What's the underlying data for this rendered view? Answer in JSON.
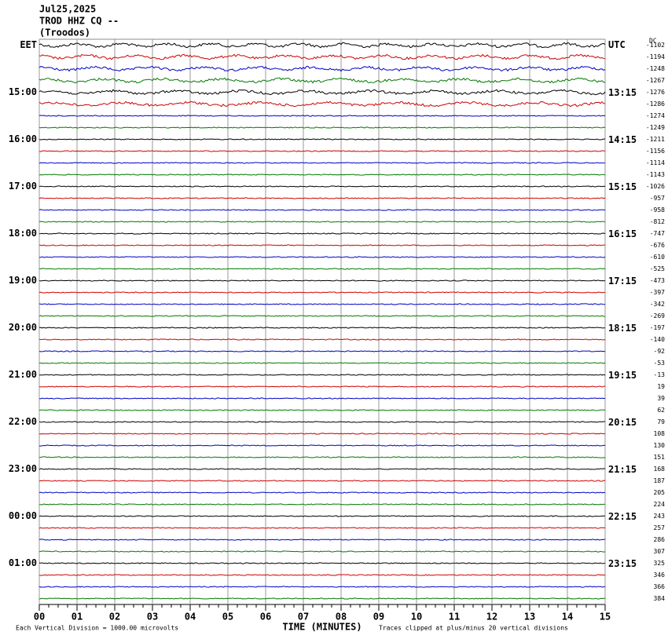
{
  "chart_data": {
    "type": "helicorder",
    "title": "Jul25,2025",
    "station": "TROD HHZ CQ --",
    "location": "(Troodos)",
    "left_labels": [
      "EET",
      "15:00",
      "16:00",
      "17:00",
      "18:00",
      "19:00",
      "20:00",
      "21:00",
      "22:00",
      "23:00",
      "00:00",
      "01:00"
    ],
    "right_labels": [
      "UTC",
      "13:15",
      "14:15",
      "15:15",
      "16:15",
      "17:15",
      "18:15",
      "19:15",
      "20:15",
      "21:15",
      "22:15",
      "23:15"
    ],
    "dc_label": "DC",
    "dc_offsets": [
      -1102,
      -1194,
      -1248,
      -1267,
      -1276,
      -1286,
      -1274,
      -1249,
      -1211,
      -1156,
      -1114,
      -1143,
      -1026,
      -957,
      -958,
      -812,
      -747,
      -676,
      -610,
      -525,
      -473,
      -397,
      -342,
      -269,
      -197,
      -140,
      -92,
      -53,
      -13,
      19,
      39,
      62,
      79,
      108,
      130,
      151,
      168,
      187,
      205,
      224,
      243,
      257,
      286,
      307,
      325,
      346,
      366,
      384
    ],
    "colors": [
      "#000000",
      "#d00000",
      "#0000c8",
      "#007a00"
    ],
    "xlim": [
      0,
      15
    ],
    "xticks": [
      {
        "value": 0,
        "label": "00"
      },
      {
        "value": 1,
        "label": "01"
      },
      {
        "value": 2,
        "label": "02"
      },
      {
        "value": 3,
        "label": "03"
      },
      {
        "value": 4,
        "label": "04"
      },
      {
        "value": 5,
        "label": "05"
      },
      {
        "value": 6,
        "label": "06"
      },
      {
        "value": 7,
        "label": "07"
      },
      {
        "value": 8,
        "label": "08"
      },
      {
        "value": 9,
        "label": "09"
      },
      {
        "value": 10,
        "label": "10"
      },
      {
        "value": 11,
        "label": "11"
      },
      {
        "value": 12,
        "label": "12"
      },
      {
        "value": 13,
        "label": "13"
      },
      {
        "value": 14,
        "label": "14"
      },
      {
        "value": 15,
        "label": "15"
      }
    ],
    "xlabel": "TIME (MINUTES)",
    "scale_note": "Each Vertical Division = 1000.00 microvolts",
    "clip_note": "Traces clipped at plus/minus 20 vertical divisions",
    "grid": true
  }
}
